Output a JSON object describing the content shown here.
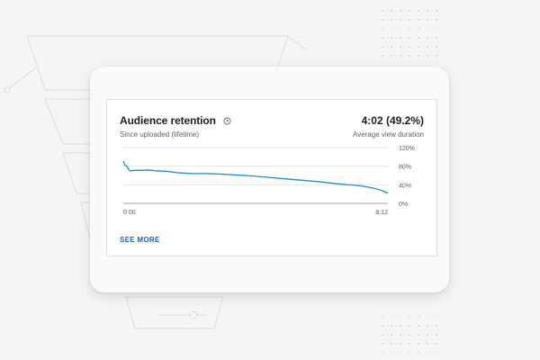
{
  "card": {
    "title": "Audience retention",
    "subtitle": "Since uploaded (lifetime)",
    "metric_value": "4:02 (49.2%)",
    "metric_label": "Average view duration",
    "see_more": "SEE MORE",
    "info_icon": "clock-icon"
  },
  "colors": {
    "line": "#1a8ccf",
    "link": "#1565c0",
    "gridline": "#e6e6e6",
    "axis": "#9e9e9e"
  },
  "chart_data": {
    "type": "line",
    "title": "",
    "xlabel": "",
    "ylabel": "",
    "x_tick_labels": [
      "0:00",
      "8:12"
    ],
    "y_tick_labels": [
      "120%",
      "80%",
      "40%",
      "0%"
    ],
    "y_ticks": [
      120,
      80,
      40,
      0
    ],
    "ylim": [
      0,
      120
    ],
    "xlim": [
      0,
      492
    ],
    "grid": true,
    "series": [
      {
        "x": [
          0,
          3,
          6,
          9,
          12,
          20,
          30,
          45,
          60,
          80,
          100,
          130,
          160,
          200,
          240,
          280,
          320,
          360,
          400,
          440,
          465,
          480,
          492
        ],
        "values": [
          91,
          82,
          81,
          75,
          70,
          71,
          71,
          72,
          70,
          69,
          66,
          64,
          64,
          62,
          59,
          55,
          51,
          47,
          42,
          38,
          33,
          28,
          22
        ]
      }
    ]
  }
}
